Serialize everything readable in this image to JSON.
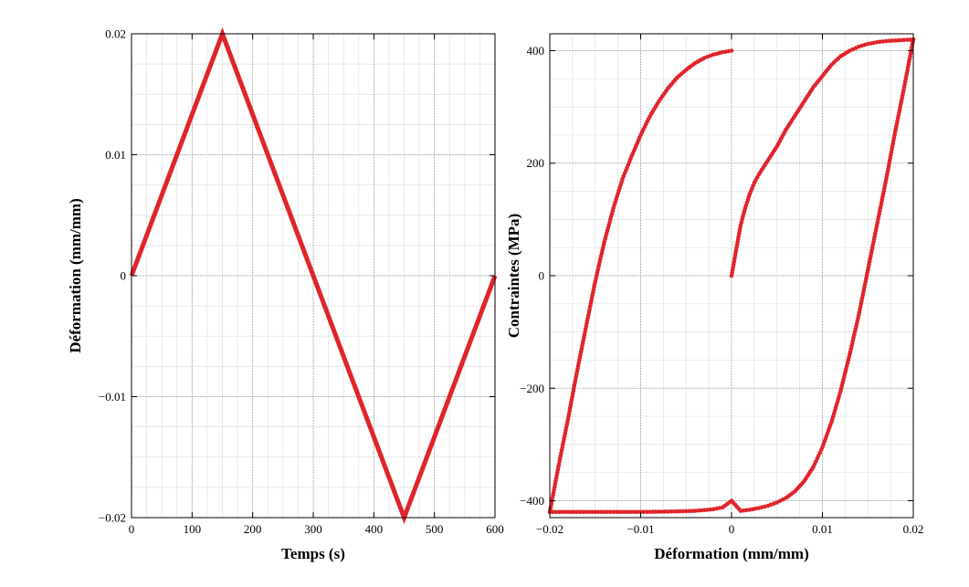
{
  "colors": {
    "series": "#e0242b",
    "major_grid": "#9a9a9a",
    "minor_grid": "#e2e2e2",
    "axis": "#000000"
  },
  "chart_data": [
    {
      "type": "line",
      "xlabel": "Temps (s)",
      "ylabel": "Déformation (mm/mm)",
      "xlim": [
        0,
        600
      ],
      "ylim": [
        -0.02,
        0.02
      ],
      "x_ticks": [
        0,
        100,
        200,
        300,
        400,
        500,
        600
      ],
      "x_tick_labels": [
        "0",
        "100",
        "200",
        "300",
        "400",
        "500",
        "600"
      ],
      "y_ticks": [
        -0.02,
        -0.01,
        0,
        0.01,
        0.02
      ],
      "y_tick_labels": [
        "−0.02",
        "−0.01",
        "0",
        "0.01",
        "0.02"
      ],
      "grid": true,
      "series": [
        {
          "x": [
            0,
            150,
            450,
            600
          ],
          "y": [
            0,
            0.02,
            -0.02,
            0
          ]
        }
      ]
    },
    {
      "type": "scatter",
      "xlabel": "Déformation (mm/mm)",
      "ylabel": "Contraintes (MPa)",
      "xlim": [
        -0.02,
        0.02
      ],
      "ylim": [
        -430,
        430
      ],
      "x_ticks": [
        -0.02,
        -0.01,
        0,
        0.01,
        0.02
      ],
      "x_tick_labels": [
        "−0.02",
        "−0.01",
        "0",
        "0.01",
        "0.02"
      ],
      "y_ticks": [
        -400,
        -200,
        0,
        200,
        400
      ],
      "y_tick_labels": [
        "−400",
        "−200",
        "0",
        "200",
        "400"
      ],
      "grid": true,
      "series": [
        {
          "x": [
            0,
            0.0005,
            0.001,
            0.0015,
            0.002,
            0.0025,
            0.003,
            0.004,
            0.005,
            0.006,
            0.007,
            0.008,
            0.009,
            0.01,
            0.011,
            0.012,
            0.013,
            0.014,
            0.015,
            0.016,
            0.017,
            0.018,
            0.019,
            0.02
          ],
          "y": [
            0,
            45,
            90,
            120,
            145,
            165,
            180,
            205,
            230,
            260,
            285,
            310,
            335,
            355,
            375,
            390,
            400,
            407,
            412,
            415,
            417,
            418,
            419,
            420
          ]
        },
        {
          "x": [
            0.02,
            0.019,
            0.018,
            0.017,
            0.016,
            0.015,
            0.014,
            0.013,
            0.012,
            0.011,
            0.01,
            0.009,
            0.008,
            0.007,
            0.006,
            0.005,
            0.004,
            0.003,
            0.002,
            0.001,
            0,
            -0.001,
            -0.002,
            -0.004,
            -0.006,
            -0.008,
            -0.01,
            -0.012,
            -0.014,
            -0.016,
            -0.018,
            -0.02
          ],
          "y": [
            420,
            335,
            255,
            170,
            90,
            10,
            -70,
            -140,
            -205,
            -260,
            -305,
            -340,
            -365,
            -383,
            -395,
            -403,
            -409,
            -413,
            -416,
            -418,
            -400,
            -412,
            -415,
            -418,
            -419,
            -419.5,
            -420,
            -420,
            -420,
            -420,
            -420,
            -420
          ]
        },
        {
          "x": [
            -0.02,
            -0.019,
            -0.018,
            -0.017,
            -0.016,
            -0.015,
            -0.014,
            -0.013,
            -0.012,
            -0.011,
            -0.01,
            -0.009,
            -0.008,
            -0.007,
            -0.006,
            -0.005,
            -0.004,
            -0.003,
            -0.002,
            -0.001,
            0
          ],
          "y": [
            -420,
            -335,
            -255,
            -170,
            -90,
            -10,
            60,
            120,
            172,
            212,
            250,
            283,
            310,
            333,
            352,
            366,
            378,
            387,
            393,
            397,
            400
          ]
        }
      ]
    }
  ]
}
